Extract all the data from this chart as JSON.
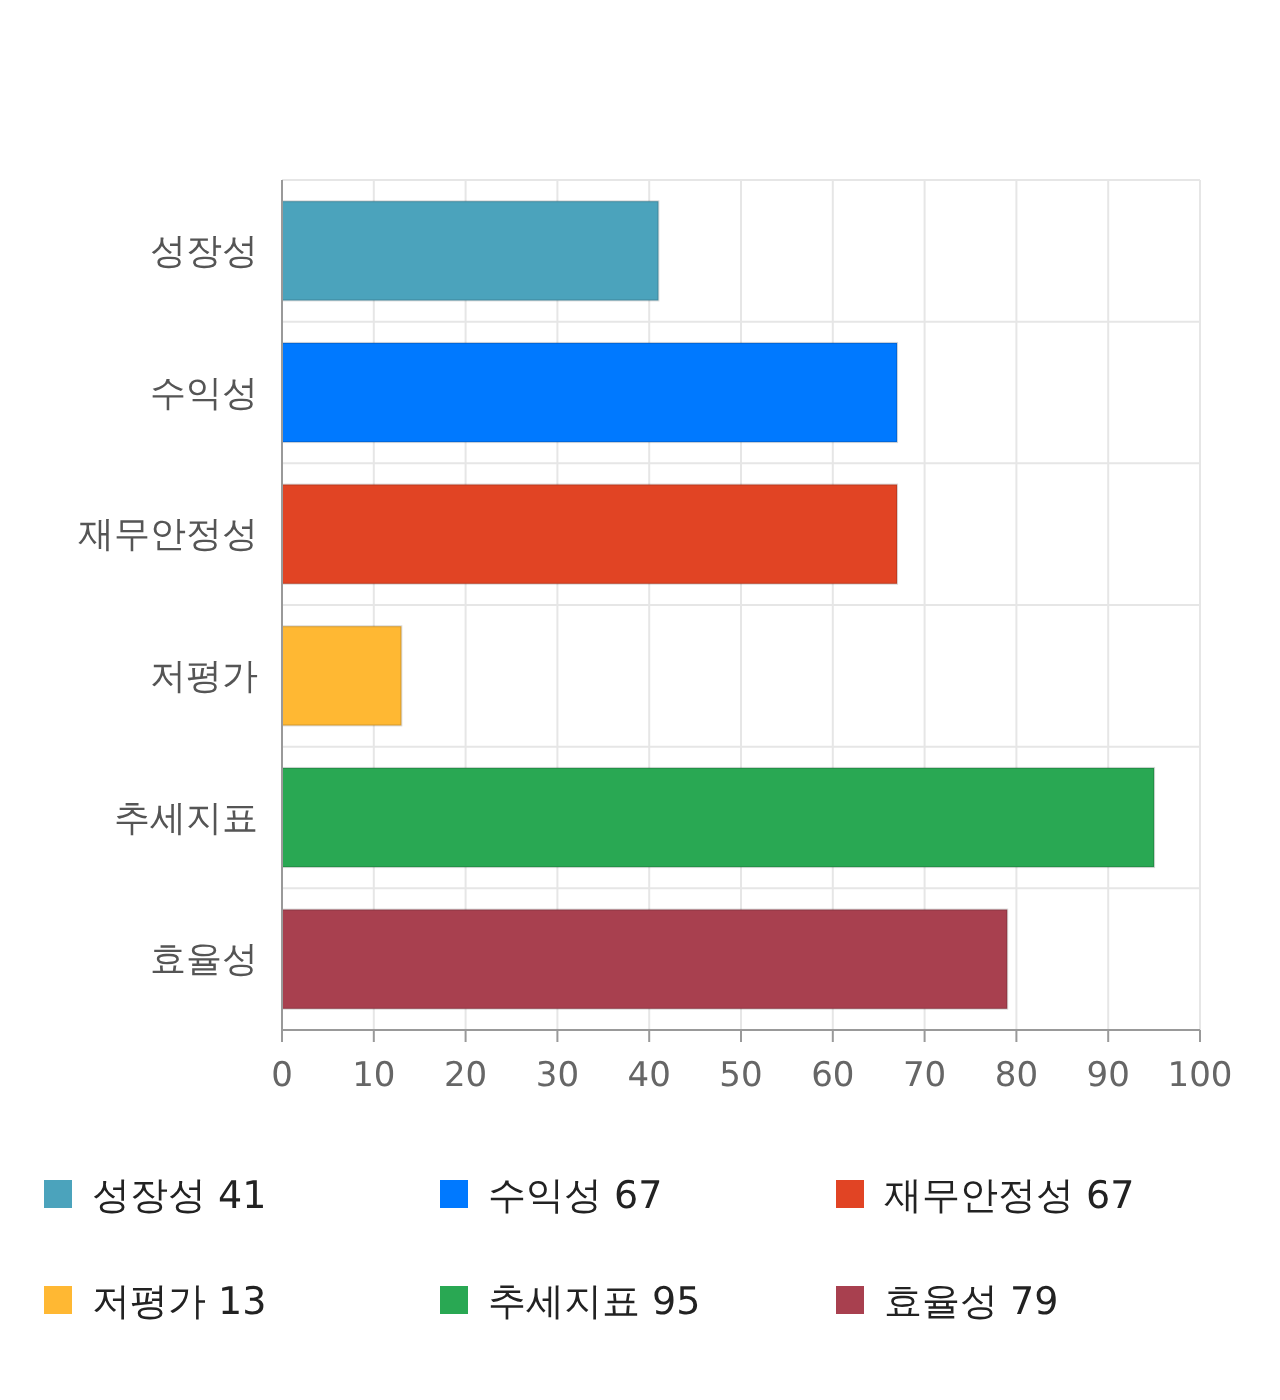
{
  "chart_data": {
    "type": "bar",
    "orientation": "horizontal",
    "categories": [
      "성장성",
      "수익성",
      "재무안정성",
      "저평가",
      "추세지표",
      "효율성"
    ],
    "series": [
      {
        "name": "성장성 41",
        "color": "#4ba3bc",
        "values": [
          41,
          null,
          null,
          null,
          null,
          null
        ]
      },
      {
        "name": "수익성 67",
        "color": "#0079ff",
        "values": [
          null,
          67,
          null,
          null,
          null,
          null
        ]
      },
      {
        "name": "재무안정성 67",
        "color": "#e14424",
        "values": [
          null,
          null,
          67,
          null,
          null,
          null
        ]
      },
      {
        "name": "저평가 13",
        "color": "#ffb833",
        "values": [
          null,
          null,
          null,
          13,
          null,
          null
        ]
      },
      {
        "name": "추세지표 95",
        "color": "#29a853",
        "values": [
          null,
          null,
          null,
          null,
          95,
          null
        ]
      },
      {
        "name": "효율성 79",
        "color": "#a8404f",
        "values": [
          null,
          null,
          null,
          null,
          null,
          79
        ]
      }
    ],
    "xlim": [
      0,
      100
    ],
    "xticks": [
      0,
      10,
      20,
      30,
      40,
      50,
      60,
      70,
      80,
      90,
      100
    ],
    "grid": true,
    "legend": "bottom"
  }
}
